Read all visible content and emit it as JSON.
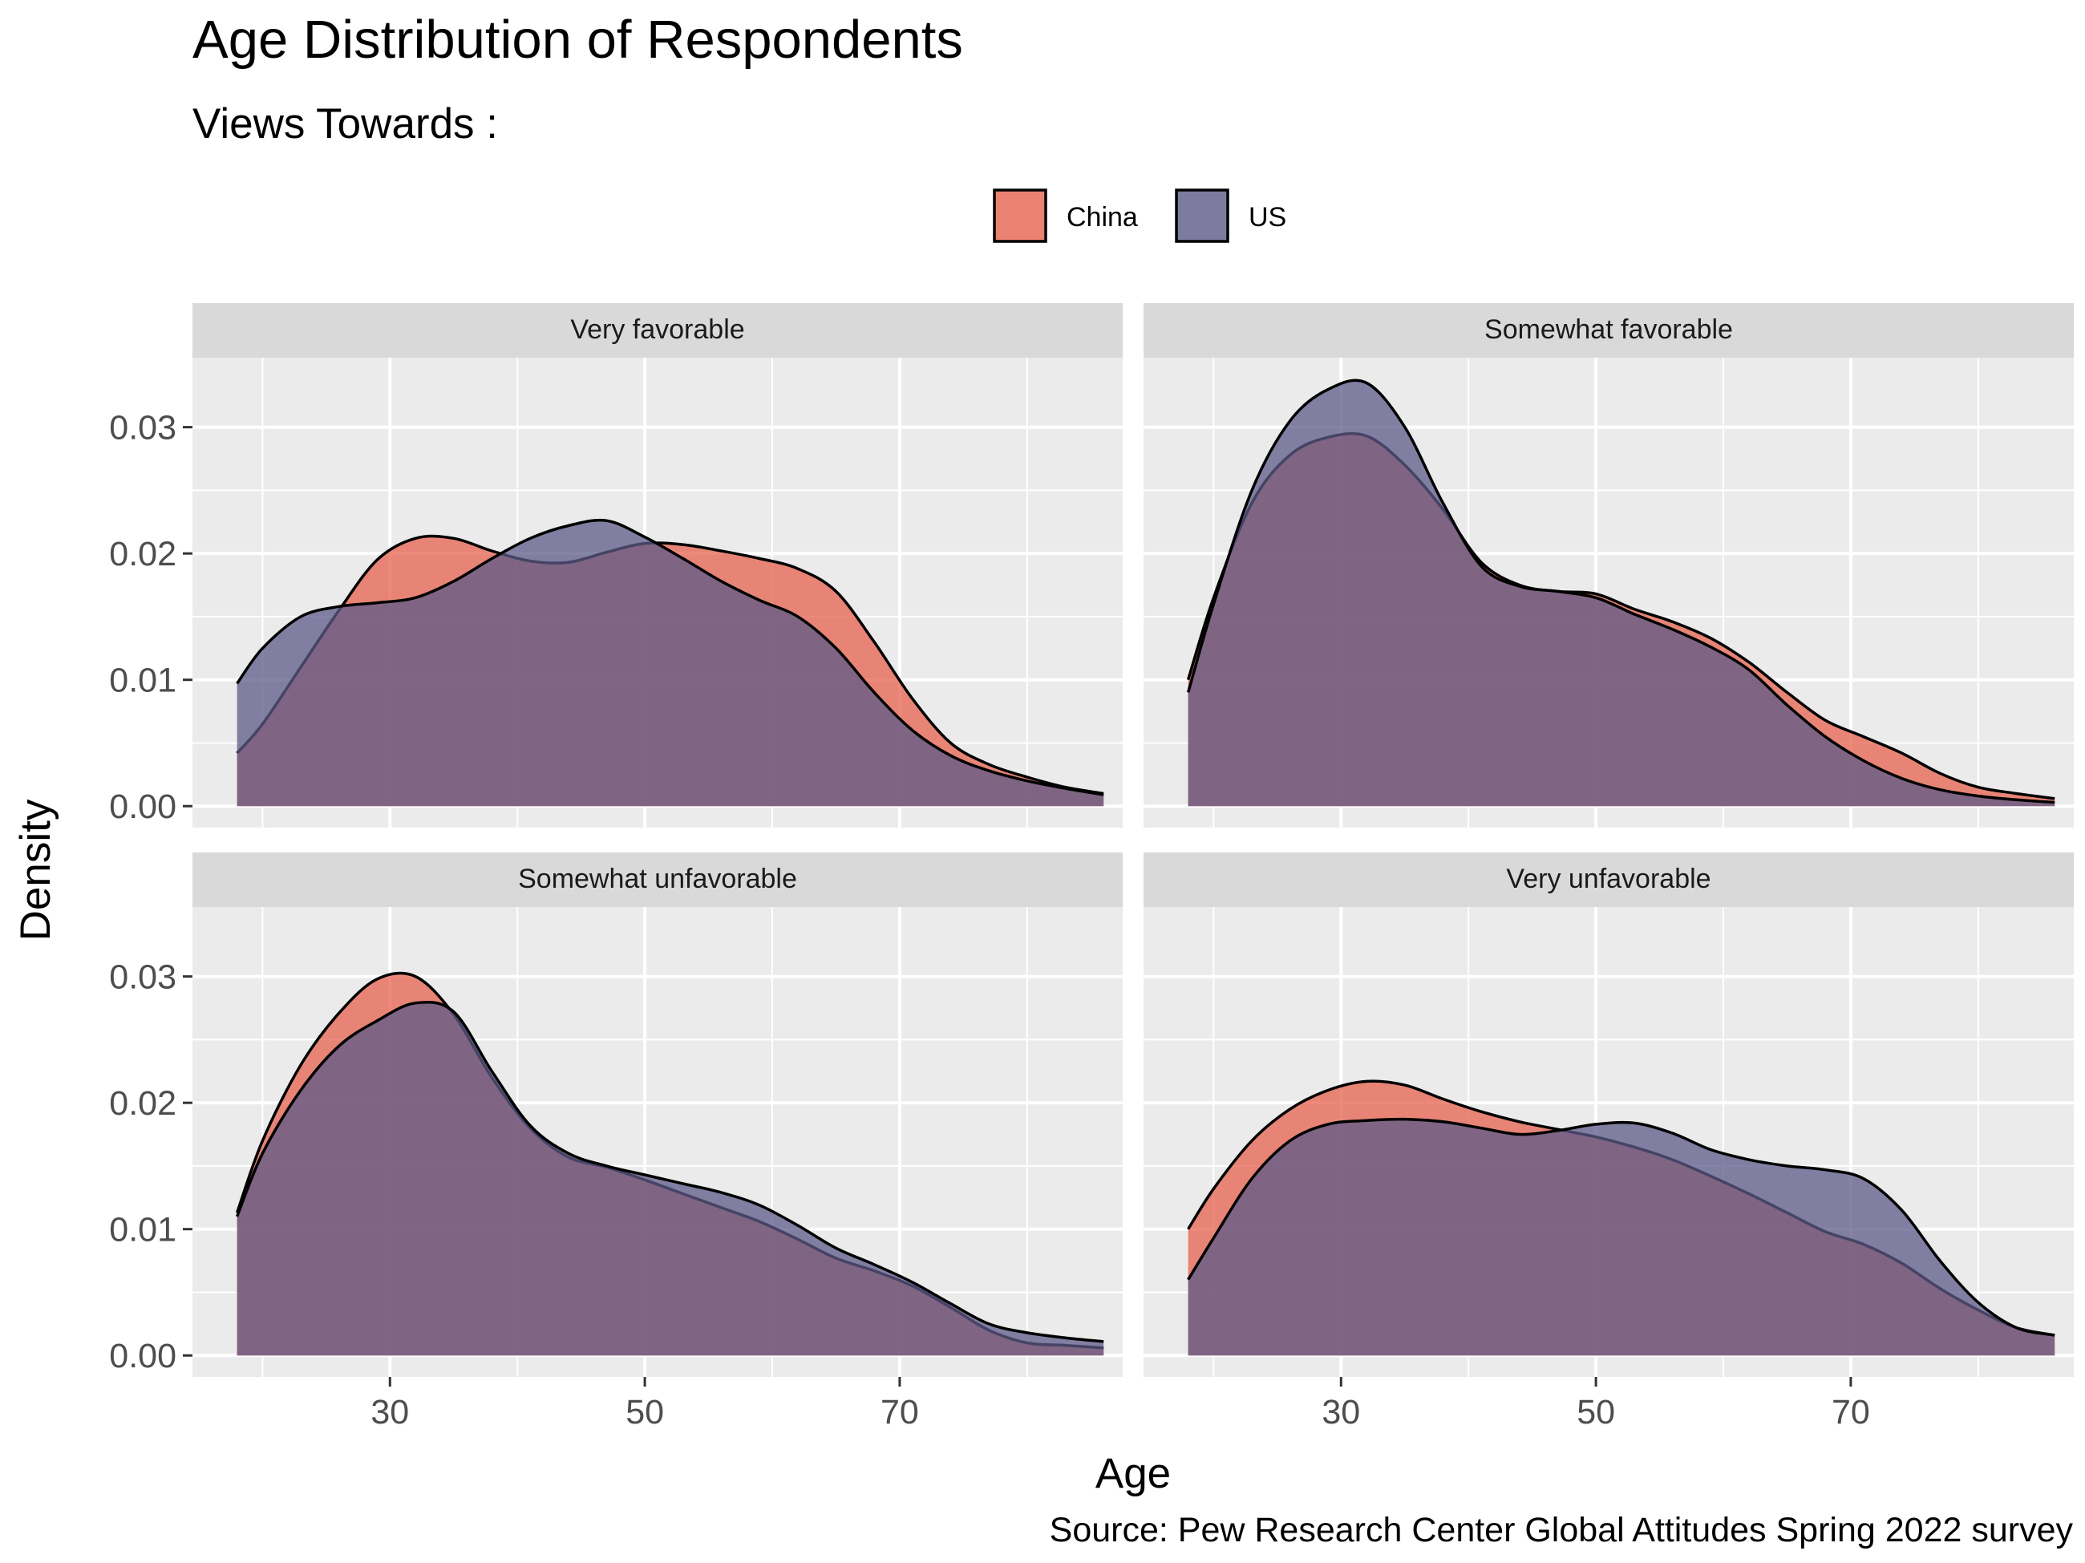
{
  "chart_data": {
    "type": "area",
    "title": "Age Distribution of Respondents",
    "subtitle": "Views Towards :",
    "xlabel": "Age",
    "ylabel": "Density",
    "caption": "Source: Pew Research Center Global Attitudes Spring 2022 survey",
    "xlim": [
      14.5,
      87.5
    ],
    "ylim": [
      -0.0017,
      0.0355
    ],
    "x_ticks": [
      30,
      50,
      70
    ],
    "x_minor_ticks": [
      20,
      40,
      60,
      80
    ],
    "y_ticks": [
      0.0,
      0.01,
      0.02,
      0.03
    ],
    "y_tick_labels": [
      "0.00",
      "0.01",
      "0.02",
      "0.03"
    ],
    "grid": true,
    "legend": {
      "position": "top",
      "entries": [
        {
          "name": "China",
          "color": "#E6624D"
        },
        {
          "name": "US",
          "color": "#5C5A88"
        }
      ]
    },
    "colors": {
      "China": "#E6624D",
      "US": "#5C5A88",
      "panel_bg": "#EBEBEB",
      "strip_bg": "#D9D9D9"
    },
    "x": [
      18,
      20,
      23,
      26,
      29,
      32,
      35,
      38,
      41,
      44,
      47,
      50,
      53,
      56,
      59,
      62,
      65,
      68,
      71,
      74,
      77,
      80,
      83,
      86
    ],
    "panels": [
      {
        "label": "Very favorable",
        "series": [
          {
            "name": "China",
            "values": [
              0.0042,
              0.0065,
              0.011,
              0.0155,
              0.0195,
              0.0212,
              0.0212,
              0.0202,
              0.0194,
              0.0193,
              0.0201,
              0.0208,
              0.0207,
              0.0202,
              0.0196,
              0.0188,
              0.017,
              0.013,
              0.0085,
              0.005,
              0.0033,
              0.0023,
              0.0015,
              0.001
            ]
          },
          {
            "name": "US",
            "values": [
              0.0097,
              0.0125,
              0.015,
              0.0158,
              0.0161,
              0.0165,
              0.0178,
              0.0196,
              0.0212,
              0.0222,
              0.0226,
              0.0213,
              0.0196,
              0.0178,
              0.0163,
              0.015,
              0.0125,
              0.009,
              0.006,
              0.004,
              0.0028,
              0.002,
              0.0014,
              0.0009
            ]
          }
        ]
      },
      {
        "label": "Somewhat favorable",
        "series": [
          {
            "name": "China",
            "values": [
              0.01,
              0.0165,
              0.024,
              0.0278,
              0.0292,
              0.0293,
              0.027,
              0.0235,
              0.0193,
              0.0175,
              0.017,
              0.0168,
              0.0156,
              0.0146,
              0.0133,
              0.0114,
              0.009,
              0.0068,
              0.0055,
              0.0042,
              0.0026,
              0.0015,
              0.001,
              0.0006
            ]
          },
          {
            "name": "US",
            "values": [
              0.009,
              0.016,
              0.025,
              0.0305,
              0.033,
              0.0335,
              0.03,
              0.024,
              0.019,
              0.0174,
              0.017,
              0.0165,
              0.0152,
              0.014,
              0.0126,
              0.0108,
              0.008,
              0.0055,
              0.0036,
              0.0022,
              0.0013,
              0.0008,
              0.0005,
              0.0003
            ]
          }
        ]
      },
      {
        "label": "Somewhat unfavorable",
        "series": [
          {
            "name": "China",
            "values": [
              0.0113,
              0.017,
              0.023,
              0.0271,
              0.0298,
              0.03,
              0.027,
              0.022,
              0.018,
              0.0157,
              0.0149,
              0.0139,
              0.0128,
              0.0117,
              0.0106,
              0.0092,
              0.0077,
              0.0067,
              0.0055,
              0.0038,
              0.002,
              0.001,
              0.0008,
              0.0006
            ]
          },
          {
            "name": "US",
            "values": [
              0.011,
              0.016,
              0.021,
              0.0245,
              0.0265,
              0.0279,
              0.0272,
              0.0225,
              0.0182,
              0.016,
              0.015,
              0.0143,
              0.0136,
              0.0129,
              0.0119,
              0.0103,
              0.0085,
              0.0072,
              0.0058,
              0.0041,
              0.0025,
              0.0018,
              0.0014,
              0.0011
            ]
          }
        ]
      },
      {
        "label": "Very unfavorable",
        "series": [
          {
            "name": "China",
            "values": [
              0.01,
              0.0132,
              0.017,
              0.0195,
              0.021,
              0.0217,
              0.0214,
              0.0203,
              0.0193,
              0.0185,
              0.0179,
              0.0173,
              0.0165,
              0.0155,
              0.0142,
              0.0128,
              0.0113,
              0.0098,
              0.0088,
              0.0073,
              0.0053,
              0.0036,
              0.0022,
              0.0016
            ]
          },
          {
            "name": "US",
            "values": [
              0.006,
              0.0093,
              0.014,
              0.017,
              0.0183,
              0.0186,
              0.0187,
              0.0185,
              0.018,
              0.0175,
              0.0178,
              0.0183,
              0.0184,
              0.0176,
              0.0163,
              0.0155,
              0.015,
              0.0147,
              0.014,
              0.0115,
              0.0075,
              0.0042,
              0.0022,
              0.0016
            ]
          }
        ]
      }
    ]
  }
}
